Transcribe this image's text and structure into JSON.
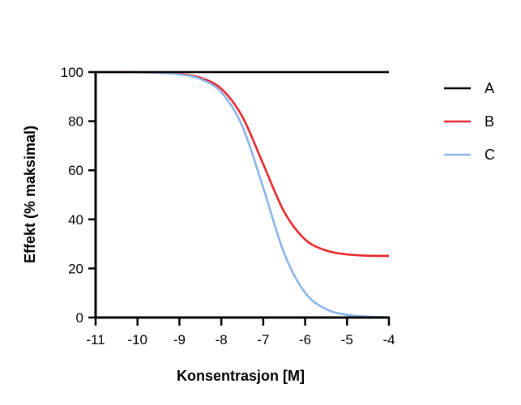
{
  "chart_data": {
    "type": "line",
    "title": "",
    "xlabel": "Konsentrasjon [M]",
    "ylabel": "Effekt (%  maksimal)",
    "xlim": [
      -11,
      -4
    ],
    "ylim": [
      0,
      100
    ],
    "xticks": [
      -11,
      -10,
      -9,
      -8,
      -7,
      -6,
      -5,
      -4
    ],
    "yticks": [
      0,
      20,
      40,
      60,
      80,
      100
    ],
    "grid": false,
    "legend_position": "right",
    "x": [
      -11,
      -10.5,
      -10,
      -9.5,
      -9,
      -8.5,
      -8,
      -7.5,
      -7,
      -6.5,
      -6,
      -5.5,
      -5,
      -4.5,
      -4
    ],
    "series": [
      {
        "name": "A",
        "color": "#000000",
        "values": [
          100,
          100,
          100,
          100,
          100,
          100,
          100,
          100,
          100,
          100,
          100,
          100,
          100,
          100,
          100
        ]
      },
      {
        "name": "B",
        "color": "#e8262b",
        "values": [
          99.99,
          99.98,
          99.93,
          99.76,
          99.26,
          97.7,
          93.2,
          81.9,
          62.5,
          43.1,
          31.8,
          27.3,
          25.7,
          25.2,
          25.1
        ]
      },
      {
        "name": "C",
        "color": "#8ab4ea",
        "values": [
          100,
          99.97,
          99.9,
          99.7,
          99.1,
          97.2,
          91.8,
          78.0,
          52.9,
          26.2,
          10.1,
          3.4,
          1.1,
          0.4,
          0.1
        ]
      }
    ]
  }
}
